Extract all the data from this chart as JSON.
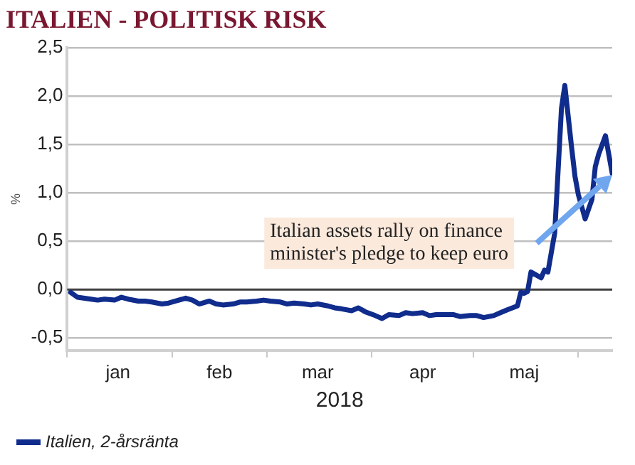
{
  "chart_data": {
    "type": "line",
    "title": "ITALIEN - POLITISK RISK",
    "xlabel": "2018",
    "ylabel": "%",
    "xlim": [
      "2018-01-01",
      "2018-06-11"
    ],
    "xticks": [
      {
        "value": "2018-01-01",
        "label": null
      },
      {
        "value": "2018-01-16",
        "label": "jan"
      },
      {
        "value": "2018-02-01",
        "label": null
      },
      {
        "value": "2018-02-15",
        "label": "feb"
      },
      {
        "value": "2018-03-01",
        "label": null
      },
      {
        "value": "2018-03-16",
        "label": "mar"
      },
      {
        "value": "2018-04-01",
        "label": null
      },
      {
        "value": "2018-04-16",
        "label": "apr"
      },
      {
        "value": "2018-05-01",
        "label": null
      },
      {
        "value": "2018-05-16",
        "label": "maj"
      },
      {
        "value": "2018-06-01",
        "label": null
      }
    ],
    "ylim": [
      -0.63,
      2.5
    ],
    "yticks": [
      {
        "value": -0.5,
        "label": "-0,5"
      },
      {
        "value": 0,
        "label": "0,0"
      },
      {
        "value": 0.5,
        "label": "0,5"
      },
      {
        "value": 1,
        "label": "1,0"
      },
      {
        "value": 1.5,
        "label": "1,5"
      },
      {
        "value": 2,
        "label": "2,0"
      },
      {
        "value": 2.5,
        "label": "2,5"
      }
    ],
    "grid": "y",
    "legend": "bottom left",
    "marker": "none",
    "line_style": "solid",
    "ref_lines": [
      {
        "axis": "y",
        "value": 0,
        "color": "#404040"
      }
    ],
    "annotations": [
      "Italian assets rally on finance minister's pledge to keep euro"
    ],
    "series": [
      {
        "name": "Italien, 2-årsränta",
        "color": "#102c8c",
        "x": [
          "2018-01-02",
          "2018-01-04",
          "2018-01-08",
          "2018-01-10",
          "2018-01-12",
          "2018-01-15",
          "2018-01-17",
          "2018-01-19",
          "2018-01-22",
          "2018-01-24",
          "2018-01-26",
          "2018-01-29",
          "2018-01-31",
          "2018-02-02",
          "2018-02-05",
          "2018-02-07",
          "2018-02-09",
          "2018-02-12",
          "2018-02-14",
          "2018-02-16",
          "2018-02-19",
          "2018-02-21",
          "2018-02-23",
          "2018-02-26",
          "2018-02-28",
          "2018-03-02",
          "2018-03-05",
          "2018-03-07",
          "2018-03-09",
          "2018-03-12",
          "2018-03-14",
          "2018-03-16",
          "2018-03-19",
          "2018-03-21",
          "2018-03-23",
          "2018-03-26",
          "2018-03-28",
          "2018-03-30",
          "2018-04-02",
          "2018-04-04",
          "2018-04-06",
          "2018-04-09",
          "2018-04-11",
          "2018-04-13",
          "2018-04-16",
          "2018-04-18",
          "2018-04-20",
          "2018-04-23",
          "2018-04-25",
          "2018-04-27",
          "2018-04-30",
          "2018-05-02",
          "2018-05-04",
          "2018-05-07",
          "2018-05-09",
          "2018-05-11",
          "2018-05-14",
          "2018-05-15",
          "2018-05-16",
          "2018-05-17",
          "2018-05-18",
          "2018-05-21",
          "2018-05-22",
          "2018-05-23",
          "2018-05-24",
          "2018-05-25",
          "2018-05-26",
          "2018-05-27",
          "2018-05-28",
          "2018-05-30",
          "2018-05-31",
          "2018-06-01",
          "2018-06-03",
          "2018-06-05",
          "2018-06-06",
          "2018-06-07",
          "2018-06-09",
          "2018-06-11"
        ],
        "values": [
          -0.03,
          -0.08,
          -0.1,
          -0.11,
          -0.1,
          -0.11,
          -0.08,
          -0.1,
          -0.12,
          -0.12,
          -0.13,
          -0.15,
          -0.14,
          -0.12,
          -0.09,
          -0.11,
          -0.15,
          -0.12,
          -0.15,
          -0.16,
          -0.15,
          -0.13,
          -0.13,
          -0.12,
          -0.11,
          -0.12,
          -0.13,
          -0.15,
          -0.14,
          -0.15,
          -0.16,
          -0.15,
          -0.17,
          -0.19,
          -0.2,
          -0.22,
          -0.19,
          -0.23,
          -0.27,
          -0.3,
          -0.26,
          -0.27,
          -0.24,
          -0.25,
          -0.24,
          -0.27,
          -0.26,
          -0.26,
          -0.26,
          -0.28,
          -0.27,
          -0.27,
          -0.29,
          -0.27,
          -0.24,
          -0.21,
          -0.17,
          -0.03,
          -0.04,
          -0.02,
          0.18,
          0.12,
          0.2,
          0.18,
          0.38,
          0.58,
          1.22,
          1.87,
          2.11,
          1.47,
          1.17,
          0.98,
          0.73,
          0.93,
          1.27,
          1.4,
          1.59,
          1.2
        ]
      }
    ]
  }
}
